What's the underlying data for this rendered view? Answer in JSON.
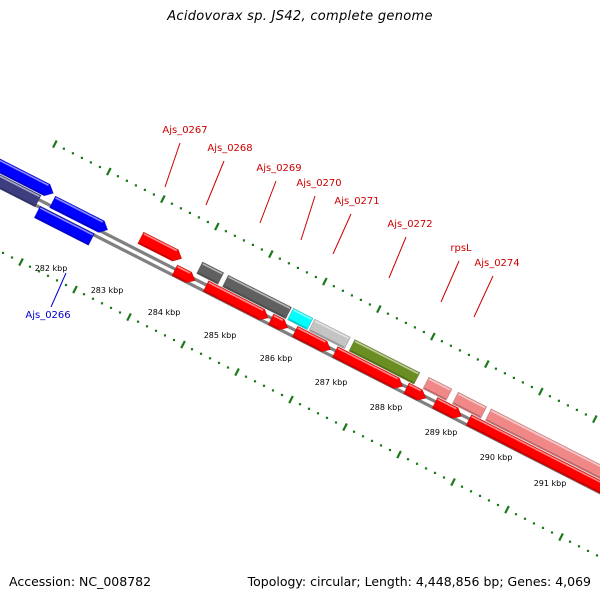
{
  "title": "Acidovorax sp. JS42, complete genome",
  "footer": {
    "accession": "Accession: NC_008782",
    "summary": "Topology: circular; Length: 4,448,856 bp; Genes: 4,069"
  },
  "colors": {
    "backbone": "#808080",
    "tick": "#1a7a1a",
    "upper_label": "#cc0000",
    "lower_label": "#0000cc",
    "red": "#ff0000",
    "blue": "#0000ff",
    "navy": "#3d3d80",
    "darkgray": "#606060",
    "cyan": "#00ffff",
    "lightgray": "#c4c4c4",
    "olive": "#6b8e23",
    "pink": "#f08888"
  },
  "scale_labels": [
    "282 kbp",
    "283 kbp",
    "284 kbp",
    "285 kbp",
    "286 kbp",
    "287 kbp",
    "288 kbp",
    "289 kbp",
    "290 kbp",
    "291 kbp"
  ],
  "upper_gene_labels": [
    "Ajs_0267",
    "Ajs_0268",
    "Ajs_0269",
    "Ajs_0270",
    "Ajs_0271",
    "Ajs_0272",
    "rpsL",
    "Ajs_0274"
  ],
  "lower_gene_labels": [
    "Ajs_0266"
  ]
}
